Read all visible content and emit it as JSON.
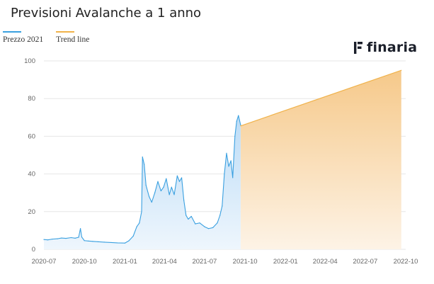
{
  "header": {
    "title": "Previsioni Avalanche a 1 anno"
  },
  "logo": {
    "text": "finaria",
    "icon": "finaria-f-icon"
  },
  "colors": {
    "price_line": "#3aa0e0",
    "price_fill_top": "#bcdcf6",
    "price_fill_bottom": "#eef6fd",
    "trend_line": "#f0b24a",
    "trend_fill_top": "#f6c98a",
    "trend_fill_bottom": "#fdf3e6",
    "grid": "#e6e6e6"
  },
  "chart_data": {
    "type": "area",
    "legend_position": "top-left",
    "grid": true,
    "ylim": [
      0,
      100
    ],
    "yticks": [
      0,
      20,
      40,
      60,
      80,
      100
    ],
    "xticks": [
      "2020-07",
      "2020-10",
      "2021-01",
      "2021-04",
      "2021-07",
      "2021-10",
      "2022-01",
      "2022-04",
      "2022-07",
      "2022-10"
    ],
    "series": [
      {
        "name": "Prezzo 2021",
        "points": [
          [
            "2020-07-01",
            5.2
          ],
          [
            "2020-07-10",
            5.0
          ],
          [
            "2020-07-20",
            5.4
          ],
          [
            "2020-08-01",
            5.6
          ],
          [
            "2020-08-10",
            6.0
          ],
          [
            "2020-08-20",
            5.8
          ],
          [
            "2020-09-01",
            6.2
          ],
          [
            "2020-09-10",
            5.9
          ],
          [
            "2020-09-18",
            6.4
          ],
          [
            "2020-09-22",
            11.0
          ],
          [
            "2020-09-25",
            6.5
          ],
          [
            "2020-10-01",
            4.6
          ],
          [
            "2020-10-10",
            4.4
          ],
          [
            "2020-10-20",
            4.2
          ],
          [
            "2020-11-01",
            4.0
          ],
          [
            "2020-11-15",
            3.8
          ],
          [
            "2020-12-01",
            3.6
          ],
          [
            "2020-12-15",
            3.4
          ],
          [
            "2021-01-01",
            3.3
          ],
          [
            "2021-01-10",
            4.5
          ],
          [
            "2021-01-20",
            7.0
          ],
          [
            "2021-01-28",
            12.0
          ],
          [
            "2021-02-03",
            14.0
          ],
          [
            "2021-02-08",
            20.0
          ],
          [
            "2021-02-10",
            49.0
          ],
          [
            "2021-02-14",
            45.0
          ],
          [
            "2021-02-18",
            34.0
          ],
          [
            "2021-02-25",
            28.0
          ],
          [
            "2021-03-03",
            25.0
          ],
          [
            "2021-03-10",
            30.0
          ],
          [
            "2021-03-17",
            36.0
          ],
          [
            "2021-03-24",
            31.0
          ],
          [
            "2021-03-30",
            33.0
          ],
          [
            "2021-04-05",
            37.5
          ],
          [
            "2021-04-12",
            29.0
          ],
          [
            "2021-04-17",
            33.0
          ],
          [
            "2021-04-23",
            29.0
          ],
          [
            "2021-04-30",
            39.0
          ],
          [
            "2021-05-05",
            36.0
          ],
          [
            "2021-05-10",
            38.0
          ],
          [
            "2021-05-15",
            26.0
          ],
          [
            "2021-05-20",
            18.0
          ],
          [
            "2021-05-25",
            16.0
          ],
          [
            "2021-06-01",
            17.5
          ],
          [
            "2021-06-10",
            13.5
          ],
          [
            "2021-06-20",
            14.0
          ],
          [
            "2021-07-01",
            12.0
          ],
          [
            "2021-07-10",
            11.0
          ],
          [
            "2021-07-20",
            11.5
          ],
          [
            "2021-07-30",
            14.0
          ],
          [
            "2021-08-05",
            18.0
          ],
          [
            "2021-08-10",
            23.0
          ],
          [
            "2021-08-15",
            40.0
          ],
          [
            "2021-08-20",
            51.0
          ],
          [
            "2021-08-25",
            44.0
          ],
          [
            "2021-08-30",
            47.0
          ],
          [
            "2021-09-03",
            38.0
          ],
          [
            "2021-09-08",
            60.0
          ],
          [
            "2021-09-12",
            68.0
          ],
          [
            "2021-09-16",
            71.0
          ],
          [
            "2021-09-21",
            66.0
          ]
        ]
      },
      {
        "name": "Trend line",
        "points": [
          [
            "2021-09-21",
            65.5
          ],
          [
            "2022-09-21",
            95.0
          ]
        ]
      }
    ]
  }
}
